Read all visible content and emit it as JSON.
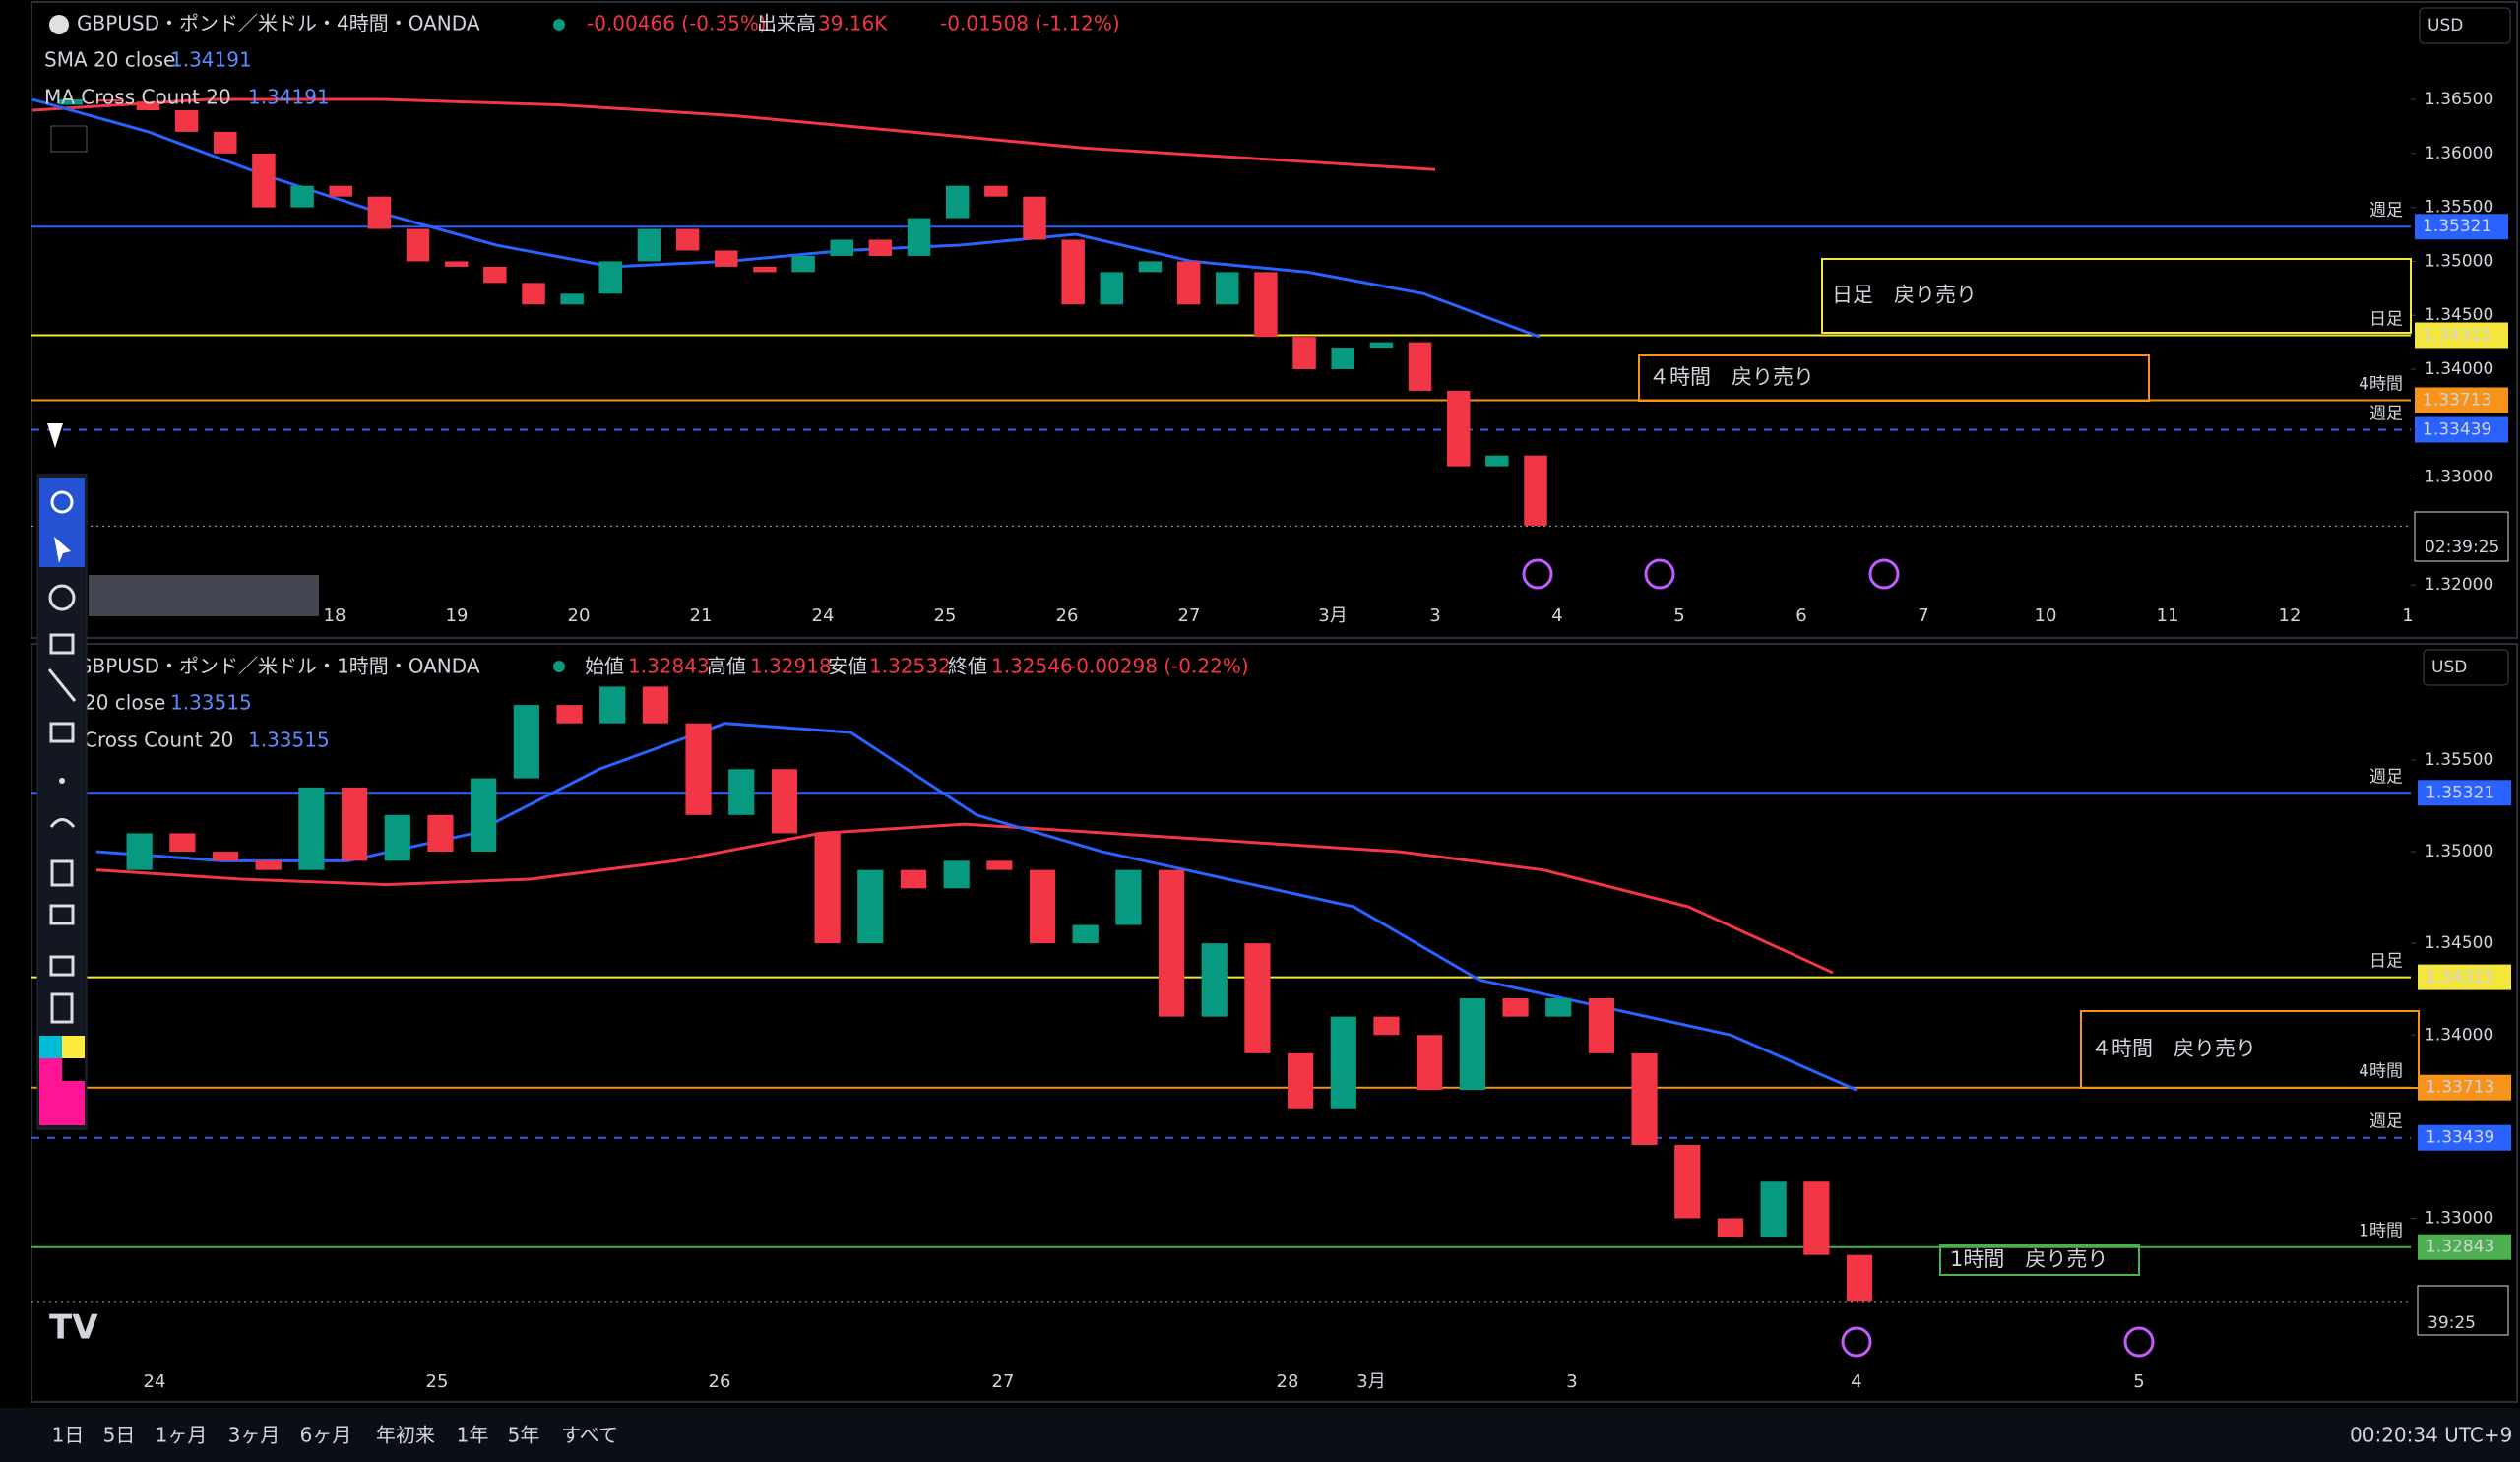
{
  "header_top": {
    "change": "-0.00466 (-0.35%)",
    "volume_label": "出来高",
    "volume": "39.16K",
    "change2": "-0.01508 (-1.12%)",
    "indicators": [
      {
        "name": "SMA 20 close",
        "value": 1.34191
      },
      {
        "name": "MA Cross Count 20",
        "value": 1.34191
      }
    ],
    "currency": "USD",
    "countdown": "02:39:25"
  },
  "header_bottom": {
    "open_label": "始値",
    "open": 1.32843,
    "high_label": "高値",
    "high": 1.32918,
    "low_label": "安値",
    "low": 1.32532,
    "close_label": "終値",
    "close": 1.32546,
    "change": "-0.00298 (-0.22%)",
    "indicators": [
      {
        "name": "20 close",
        "value": 1.33515
      },
      {
        "name": "Cross Count 20",
        "value": 1.33515
      }
    ],
    "currency": "USD",
    "countdown": "39:25"
  },
  "toolbar": {
    "ranges": [
      "1日",
      "5日",
      "1ヶ月",
      "3ヶ月",
      "6ヶ月",
      "年初来",
      "1年",
      "5年",
      "すべて"
    ],
    "clock": "00:20:34 UTC+9"
  },
  "chart_data": [
    {
      "type": "candlestick",
      "title": "GBPUSD・ポンド／米ドル・4時間・OANDA",
      "categories": [
        "18",
        "19",
        "20",
        "21",
        "24",
        "25",
        "26",
        "27",
        "3月",
        "3",
        "4",
        "5",
        "6",
        "7",
        "10",
        "11",
        "12",
        "1"
      ],
      "closes": [
        1.3645,
        1.365,
        1.3648,
        1.364,
        1.362,
        1.36,
        1.355,
        1.357,
        1.356,
        1.353,
        1.35,
        1.3495,
        1.348,
        1.346,
        1.347,
        1.35,
        1.353,
        1.351,
        1.3495,
        1.349,
        1.3505,
        1.352,
        1.3505,
        1.354,
        1.357,
        1.356,
        1.352,
        1.346,
        1.349,
        1.35,
        1.346,
        1.349,
        1.343,
        1.34,
        1.342,
        1.3425,
        1.338,
        1.331,
        1.332,
        1.3255
      ],
      "sma": [
        1.365,
        1.362,
        1.358,
        1.3545,
        1.3515,
        1.3495,
        1.35,
        1.351,
        1.3515,
        1.3525,
        1.35,
        1.349,
        1.347,
        1.343
      ],
      "ma_long": [
        1.364,
        1.365,
        1.365,
        1.3645,
        1.3635,
        1.362,
        1.3605,
        1.3595,
        1.3585
      ],
      "ylim": [
        1.31582,
        1.37422
      ],
      "yticks": [
        {
          "value": 1.365,
          "label": "1.36500"
        },
        {
          "value": 1.36,
          "label": "1.36000"
        },
        {
          "value": 1.355,
          "label": "1.35500"
        },
        {
          "value": 1.35,
          "label": "1.35000"
        },
        {
          "value": 1.345,
          "label": "1.34500"
        },
        {
          "value": 1.34,
          "label": "1.34000"
        },
        {
          "value": 1.33,
          "label": "1.33000"
        },
        {
          "value": 1.32,
          "label": "1.32000"
        }
      ],
      "levels": [
        {
          "name": "週足",
          "value": 1.35321,
          "color": "#2962ff",
          "dashed": false
        },
        {
          "name": "日足",
          "value": 1.34315,
          "color": "#f5e63b",
          "dashed": false
        },
        {
          "name": "4時間",
          "value": 1.33713,
          "color": "#f7931a",
          "dashed": false
        },
        {
          "name": "週足",
          "value": 1.33439,
          "color": "#2962ff",
          "dashed": true
        }
      ],
      "last_price": 1.32546,
      "annotations": [
        "日足　戻り売り",
        "４時間　戻り売り"
      ]
    },
    {
      "type": "candlestick",
      "title": "GBPUSD・ポンド／米ドル・1時間・OANDA",
      "categories": [
        "24",
        "25",
        "26",
        "27",
        "28",
        "3月",
        "3",
        "4",
        "5"
      ],
      "closes": [
        1.349,
        1.351,
        1.35,
        1.3495,
        1.349,
        1.3535,
        1.3495,
        1.352,
        1.35,
        1.354,
        1.358,
        1.357,
        1.359,
        1.357,
        1.352,
        1.3545,
        1.351,
        1.345,
        1.349,
        1.348,
        1.3495,
        1.349,
        1.345,
        1.346,
        1.349,
        1.341,
        1.345,
        1.339,
        1.336,
        1.341,
        1.34,
        1.337,
        1.342,
        1.341,
        1.342,
        1.339,
        1.334,
        1.33,
        1.329,
        1.332,
        1.328,
        1.3255
      ],
      "sma": [
        1.35,
        1.3495,
        1.3495,
        1.351,
        1.3545,
        1.357,
        1.3565,
        1.352,
        1.35,
        1.3485,
        1.347,
        1.343,
        1.3415,
        1.34,
        1.337
      ],
      "ma_long": [
        1.349,
        1.3485,
        1.3482,
        1.3485,
        1.3495,
        1.351,
        1.3515,
        1.351,
        1.3505,
        1.35,
        1.349,
        1.347,
        1.3434
      ],
      "ylim": [
        1.32154,
        1.36128
      ],
      "yticks": [
        {
          "value": 1.355,
          "label": "1.35500"
        },
        {
          "value": 1.35,
          "label": "1.35000"
        },
        {
          "value": 1.345,
          "label": "1.34500"
        },
        {
          "value": 1.34,
          "label": "1.34000"
        },
        {
          "value": 1.33,
          "label": "1.33000"
        }
      ],
      "levels": [
        {
          "name": "週足",
          "value": 1.35321,
          "color": "#2962ff",
          "dashed": false
        },
        {
          "name": "日足",
          "value": 1.34315,
          "color": "#f5e63b",
          "dashed": false
        },
        {
          "name": "4時間",
          "value": 1.33713,
          "color": "#f7931a",
          "dashed": false
        },
        {
          "name": "週足",
          "value": 1.33439,
          "color": "#2962ff",
          "dashed": true
        },
        {
          "name": "1時間",
          "value": 1.32843,
          "color": "#4caf50",
          "dashed": false
        }
      ],
      "last_price": 1.32546,
      "annotations": [
        "４時間　戻り売り",
        "1時間　戻り売り"
      ]
    }
  ]
}
